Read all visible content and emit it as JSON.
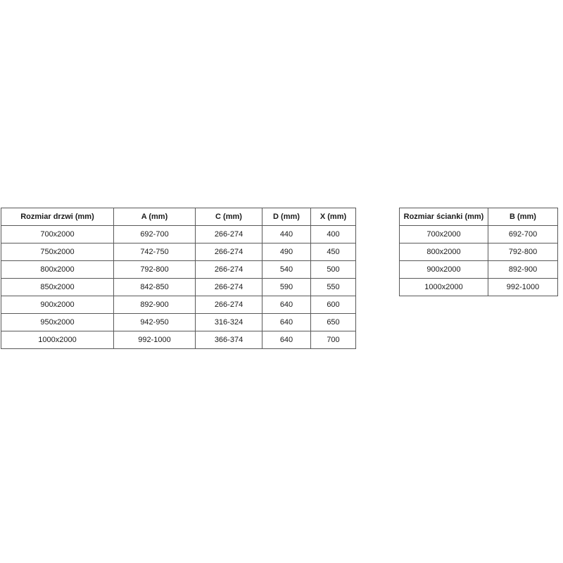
{
  "colors": {
    "text": "#1a1a1a",
    "border": "#595959",
    "background": "#ffffff"
  },
  "tables": {
    "doors": {
      "headers": [
        "Rozmiar drzwi (mm)",
        "A (mm)",
        "C (mm)",
        "D (mm)",
        "X (mm)"
      ],
      "rows": [
        [
          "700x2000",
          "692-700",
          "266-274",
          "440",
          "400"
        ],
        [
          "750x2000",
          "742-750",
          "266-274",
          "490",
          "450"
        ],
        [
          "800x2000",
          "792-800",
          "266-274",
          "540",
          "500"
        ],
        [
          "850x2000",
          "842-850",
          "266-274",
          "590",
          "550"
        ],
        [
          "900x2000",
          "892-900",
          "266-274",
          "640",
          "600"
        ],
        [
          "950x2000",
          "942-950",
          "316-324",
          "640",
          "650"
        ],
        [
          "1000x2000",
          "992-1000",
          "366-374",
          "640",
          "700"
        ]
      ]
    },
    "walls": {
      "headers": [
        "Rozmiar ścianki (mm)",
        "B (mm)"
      ],
      "rows": [
        [
          "700x2000",
          "692-700"
        ],
        [
          "800x2000",
          "792-800"
        ],
        [
          "900x2000",
          "892-900"
        ],
        [
          "1000x2000",
          "992-1000"
        ]
      ]
    }
  }
}
